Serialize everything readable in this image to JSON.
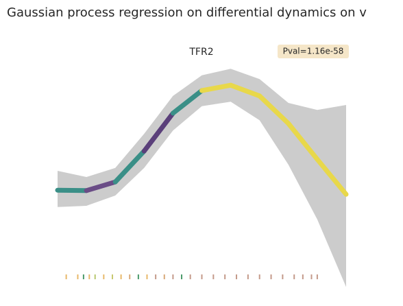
{
  "chart_data": {
    "type": "line",
    "title": "Gaussian process regression on differential dynamics on v",
    "subtitle": "TFR2",
    "annotation": "Pval=1.16e-58",
    "x": [
      0,
      0.1,
      0.2,
      0.3,
      0.4,
      0.5,
      0.6,
      0.7,
      0.8,
      0.9,
      1.0
    ],
    "values": [
      -0.62,
      -0.63,
      -0.42,
      0.33,
      1.25,
      1.8,
      1.93,
      1.67,
      1.0,
      0.13,
      -0.72
    ],
    "line_colors": [
      "#3a8f87",
      "#6a4c86",
      "#3a8f87",
      "#5a3f7a",
      "#3a8f87",
      "#e8d84a",
      "#e8d84a",
      "#e8d84a",
      "#e8d84a",
      "#e8d84a"
    ],
    "band": {
      "upper": [
        -0.15,
        -0.3,
        -0.08,
        0.75,
        1.67,
        2.17,
        2.33,
        2.08,
        1.5,
        1.33,
        1.45
      ],
      "lower": [
        -1.03,
        -1.0,
        -0.75,
        -0.08,
        0.83,
        1.42,
        1.53,
        1.08,
        0.0,
        -1.33,
        -2.97
      ],
      "color": "#cccccc"
    },
    "rug": {
      "x": [
        0.03,
        0.07,
        0.09,
        0.11,
        0.13,
        0.16,
        0.19,
        0.22,
        0.25,
        0.28,
        0.31,
        0.34,
        0.37,
        0.4,
        0.43,
        0.46,
        0.5,
        0.54,
        0.58,
        0.62,
        0.66,
        0.7,
        0.74,
        0.78,
        0.82,
        0.85,
        0.88,
        0.9
      ],
      "colors": [
        "#e8b86a",
        "#e8b86a",
        "#4a9a6a",
        "#e8b86a",
        "#b8c870",
        "#e8b86a",
        "#c8c870",
        "#e8b86a",
        "#d8a878",
        "#4a9a6a",
        "#e8b86a",
        "#c49a8a",
        "#d8a878",
        "#c49a8a",
        "#4a9a6a",
        "#c49a8a",
        "#c49a8a",
        "#c49a8a",
        "#c49a8a",
        "#c49a8a",
        "#c49a8a",
        "#c49a8a",
        "#c49a8a",
        "#c49a8a",
        "#c49a8a",
        "#c49a8a",
        "#c49a8a",
        "#c49a8a"
      ]
    },
    "xlim": [
      0,
      1
    ],
    "ylim": [
      -3,
      3
    ]
  }
}
